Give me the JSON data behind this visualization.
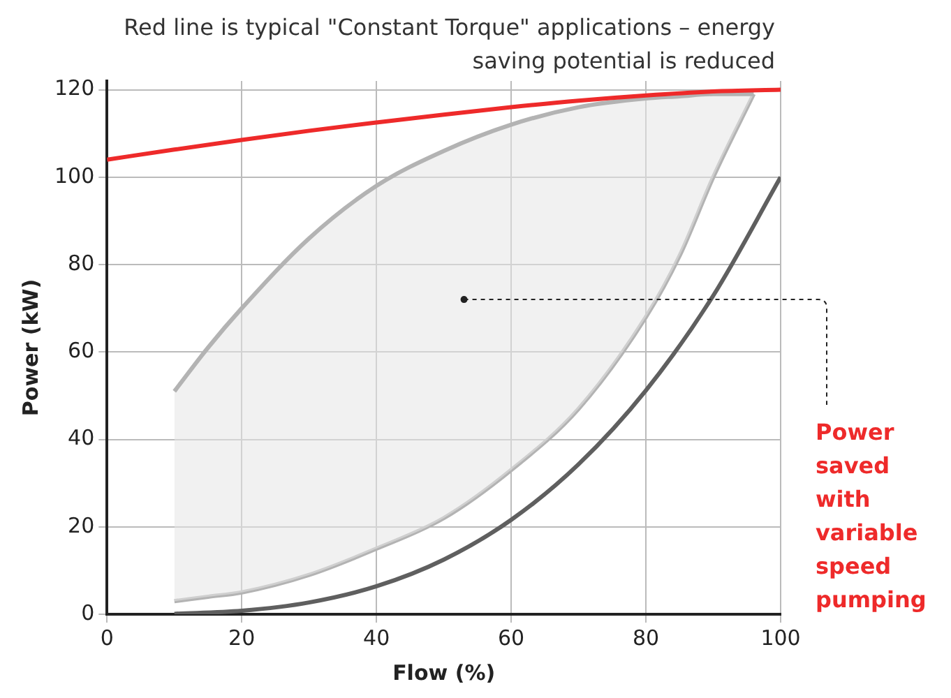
{
  "chart_data": {
    "type": "line",
    "title": "Red line is typical \"Constant Torque\" applications – energy saving potential is reduced",
    "xlabel": "Flow (%)",
    "ylabel": "Power (kW)",
    "xlim": [
      0,
      100
    ],
    "xticks": [
      0,
      20,
      40,
      60,
      80,
      100
    ],
    "ylim": [
      0,
      122
    ],
    "yticks": [
      0,
      20,
      40,
      60,
      80,
      100,
      120
    ],
    "grid": true,
    "legend": false,
    "marker": "none",
    "line_style": "solid",
    "series": [
      {
        "color": "#ee2a2a",
        "x": [
          0,
          10,
          20,
          30,
          40,
          50,
          60,
          70,
          80,
          90,
          100
        ],
        "values": [
          104,
          106.3,
          108.5,
          110.6,
          112.5,
          114.3,
          116,
          117.5,
          118.7,
          119.6,
          120
        ]
      },
      {
        "color": "#5f5f5f",
        "x": [
          10,
          20,
          30,
          40,
          50,
          60,
          70,
          80,
          90,
          100
        ],
        "values": [
          0.1,
          0.8,
          2.7,
          6.4,
          12.5,
          21.6,
          34.3,
          51.2,
          72.9,
          100
        ]
      },
      {
        "color": "#b3b3b3",
        "x": [
          10,
          15,
          20,
          30,
          40,
          50,
          60,
          70,
          80,
          85,
          90,
          96
        ],
        "values": [
          51,
          61,
          70,
          86,
          98,
          106,
          112,
          116,
          118,
          118.5,
          119,
          119
        ]
      },
      {
        "color": "#b3b3b3",
        "x": [
          10,
          15,
          20,
          30,
          40,
          50,
          60,
          70,
          80,
          85,
          90,
          96
        ],
        "values": [
          3,
          4,
          5,
          9,
          15,
          22,
          33,
          47,
          68,
          82,
          100,
          119
        ],
        "lower": [
          3,
          4,
          5,
          9,
          15,
          22,
          33,
          47,
          68,
          82,
          100,
          119
        ],
        "upper": [
          51,
          61,
          70,
          86,
          98,
          106,
          112,
          116,
          118,
          118.5,
          119,
          119
        ]
      }
    ],
    "annotations": [
      {
        "text": "Power saved with variable speed pumping",
        "x": 53,
        "y": 72
      }
    ]
  }
}
